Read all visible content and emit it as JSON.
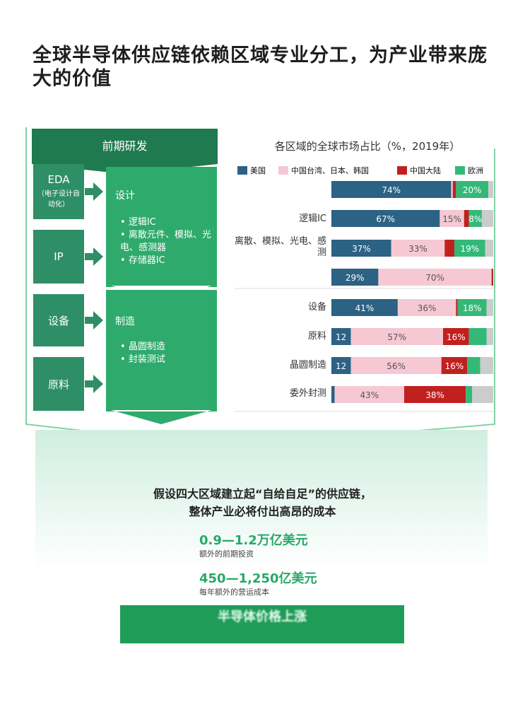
{
  "title": "全球半导体供应链依赖区域专业分工，为产业带来庞大的价值",
  "diagram": {
    "stage_header": "前期研发",
    "eda_label": "EDA",
    "eda_sub": "（电子设计自动化）",
    "ip_label": "IP",
    "equipment_label": "设备",
    "materials_label": "原料",
    "design_title": "设计",
    "design_items": [
      "逻辑IC",
      "离散元件、模拟、光电、感测器",
      "存储器IC"
    ],
    "manufacturing_title": "制造",
    "manufacturing_items": [
      "晶圆制造",
      "封装测试"
    ]
  },
  "chart_data": {
    "type": "bar",
    "orientation": "horizontal",
    "stacked": true,
    "title": "各区域的全球市场占比（%，2019年）",
    "legend_position": "top",
    "series": [
      {
        "name": "美国",
        "color": "#2c6284"
      },
      {
        "name": "中国台湾、日本、韩国",
        "color": "#f6c8d4"
      },
      {
        "name": "中国大陆",
        "color": "#c0211f"
      },
      {
        "name": "欧洲",
        "color": "#34b878"
      }
    ],
    "other_color": "#cccccc",
    "categories": [
      "",
      "逻辑IC",
      "离散、模拟、光电、感测",
      "",
      "设备",
      "原料",
      "晶圆制造",
      "委外封测"
    ],
    "values": [
      [
        74,
        1,
        2,
        20,
        3
      ],
      [
        67,
        15,
        3,
        8,
        7
      ],
      [
        37,
        33,
        6,
        19,
        5
      ],
      [
        29,
        70,
        1,
        0,
        0
      ],
      [
        41,
        36,
        1,
        18,
        4
      ],
      [
        12,
        57,
        16,
        11,
        4
      ],
      [
        12,
        56,
        16,
        8,
        8
      ],
      [
        2,
        43,
        38,
        4,
        13
      ]
    ],
    "labels": [
      [
        "74%",
        "",
        "",
        "20%",
        ""
      ],
      [
        "67%",
        "15%",
        "",
        "8%",
        ""
      ],
      [
        "37%",
        "33%",
        "",
        "19%",
        ""
      ],
      [
        "29%",
        "70%",
        "",
        "",
        ""
      ],
      [
        "41%",
        "36%",
        "",
        "18%",
        ""
      ],
      [
        "12",
        "57%",
        "16%",
        "",
        ""
      ],
      [
        "12",
        "56%",
        "16%",
        "",
        ""
      ],
      [
        "",
        "43%",
        "38%",
        "",
        ""
      ]
    ],
    "xlim": [
      0,
      100
    ]
  },
  "bottom": {
    "question_line1": "假设四大区域建立起“自给自足”的供应链，",
    "question_line2": "整体产业必将付出高昂的成本",
    "amount1": "0.9—1.2万亿美元",
    "amount1_label": "额外的前期投资",
    "amount2": "450—1,250亿美元",
    "amount2_label": "每年额外的营运成本",
    "bar_text": "半导体价格上涨"
  }
}
